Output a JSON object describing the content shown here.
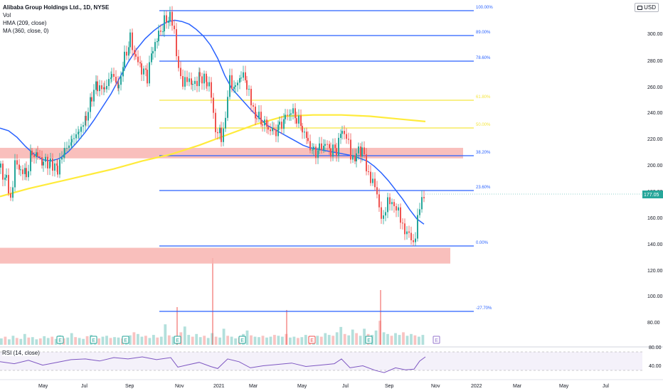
{
  "legend": {
    "title": "Alibaba Group Holdings Ltd., 1D, NYSE",
    "vol": "Vol",
    "hma": "HMA (209, close)",
    "ma": "MA (360, close, 0)"
  },
  "currency": "USD",
  "rsi_label": "RSI (14, close)",
  "colors": {
    "up": "#26a69a",
    "down": "#ef5350",
    "hma": "#2962ff",
    "ma": "#ffeb3b",
    "fib_blue": "#2962ff",
    "fib_yellow": "#f5e642",
    "zone": "#f8b4b0",
    "rsi": "#7e57c2",
    "earnings_green": "#26a69a",
    "earnings_red": "#ef5350",
    "earnings_purple": "#9575cd"
  },
  "chart_data": {
    "type": "candlestick",
    "title": "Alibaba Group Holdings Ltd., 1D, NYSE",
    "x_axis_labels": [
      "May",
      "Jul",
      "Sep",
      "Nov",
      "2021",
      "Mar",
      "May",
      "Jul",
      "Sep",
      "Nov",
      "2022",
      "Mar",
      "May",
      "Jul"
    ],
    "y_axis_ticks": [
      300,
      280,
      260,
      240,
      220,
      200,
      180,
      160,
      140,
      120,
      100,
      80
    ],
    "y_range": [
      70,
      322
    ],
    "last_price": "177.05",
    "fib_levels": [
      {
        "label": "100.00%",
        "price": 318,
        "color": "blue"
      },
      {
        "label": "89.00%",
        "price": 298,
        "color": "blue"
      },
      {
        "label": "78.60%",
        "price": 279,
        "color": "blue"
      },
      {
        "label": "61.80%",
        "price": 249,
        "color": "yellow"
      },
      {
        "label": "50.00%",
        "price": 228,
        "color": "yellow"
      },
      {
        "label": "38.20%",
        "price": 207,
        "color": "blue"
      },
      {
        "label": "23.60%",
        "price": 180,
        "color": "blue"
      },
      {
        "label": "0.00%",
        "price": 138,
        "color": "blue"
      },
      {
        "label": "-27.70%",
        "price": 88,
        "color": "blue"
      }
    ],
    "zones": [
      {
        "from": 205,
        "to": 213,
        "start": "Apr 2020",
        "end": "Nov 2021"
      },
      {
        "from": 125,
        "to": 137,
        "start": "Apr 2020",
        "end": "Nov 2021"
      }
    ],
    "rsi_ticks": [
      80,
      40
    ],
    "earnings_markers": [
      {
        "label": "E",
        "color": "green"
      },
      {
        "label": "E",
        "color": "green"
      },
      {
        "label": "E",
        "color": "green"
      },
      {
        "label": "E",
        "color": "green"
      },
      {
        "label": "E",
        "color": "green"
      },
      {
        "label": "E",
        "color": "red"
      },
      {
        "label": "E",
        "color": "green"
      },
      {
        "label": "E",
        "color": "purple"
      }
    ],
    "price_path": [
      [
        0,
        198
      ],
      [
        8,
        188
      ],
      [
        14,
        175
      ],
      [
        20,
        200
      ],
      [
        28,
        195
      ],
      [
        36,
        192
      ],
      [
        44,
        210
      ],
      [
        52,
        208
      ],
      [
        60,
        202
      ],
      [
        70,
        203
      ],
      [
        80,
        198
      ],
      [
        90,
        208
      ],
      [
        100,
        220
      ],
      [
        110,
        228
      ],
      [
        120,
        232
      ],
      [
        128,
        252
      ],
      [
        136,
        262
      ],
      [
        146,
        255
      ],
      [
        156,
        268
      ],
      [
        166,
        262
      ],
      [
        174,
        282
      ],
      [
        182,
        295
      ],
      [
        190,
        280
      ],
      [
        198,
        272
      ],
      [
        206,
        268
      ],
      [
        214,
        290
      ],
      [
        222,
        300
      ],
      [
        230,
        308
      ],
      [
        238,
        312
      ],
      [
        244,
        300
      ],
      [
        250,
        275
      ],
      [
        256,
        258
      ],
      [
        262,
        268
      ],
      [
        270,
        262
      ],
      [
        280,
        268
      ],
      [
        290,
        262
      ],
      [
        296,
        252
      ],
      [
        302,
        228
      ],
      [
        310,
        222
      ],
      [
        316,
        236
      ],
      [
        322,
        264
      ],
      [
        330,
        258
      ],
      [
        338,
        268
      ],
      [
        346,
        262
      ],
      [
        352,
        245
      ],
      [
        360,
        236
      ],
      [
        368,
        232
      ],
      [
        376,
        228
      ],
      [
        384,
        226
      ],
      [
        392,
        230
      ],
      [
        400,
        236
      ],
      [
        408,
        240
      ],
      [
        416,
        235
      ],
      [
        424,
        228
      ],
      [
        432,
        218
      ],
      [
        440,
        210
      ],
      [
        448,
        212
      ],
      [
        456,
        215
      ],
      [
        464,
        210
      ],
      [
        472,
        212
      ],
      [
        480,
        228
      ],
      [
        486,
        222
      ],
      [
        492,
        205
      ],
      [
        500,
        208
      ],
      [
        508,
        212
      ],
      [
        514,
        196
      ],
      [
        520,
        192
      ],
      [
        526,
        182
      ],
      [
        532,
        168
      ],
      [
        538,
        160
      ],
      [
        544,
        170
      ],
      [
        550,
        174
      ],
      [
        556,
        166
      ],
      [
        562,
        158
      ],
      [
        568,
        152
      ],
      [
        574,
        145
      ],
      [
        580,
        140
      ],
      [
        586,
        160
      ],
      [
        592,
        172
      ],
      [
        598,
        177
      ]
    ],
    "hma_path": [
      [
        0,
        228
      ],
      [
        12,
        226
      ],
      [
        24,
        221
      ],
      [
        36,
        214
      ],
      [
        48,
        208
      ],
      [
        60,
        204
      ],
      [
        72,
        203
      ],
      [
        84,
        205
      ],
      [
        96,
        210
      ],
      [
        108,
        217
      ],
      [
        120,
        225
      ],
      [
        132,
        234
      ],
      [
        144,
        244
      ],
      [
        156,
        254
      ],
      [
        168,
        266
      ],
      [
        180,
        278
      ],
      [
        192,
        288
      ],
      [
        204,
        296
      ],
      [
        216,
        302
      ],
      [
        226,
        306
      ],
      [
        236,
        309
      ],
      [
        246,
        310
      ],
      [
        256,
        309
      ],
      [
        266,
        307
      ],
      [
        276,
        303
      ],
      [
        286,
        298
      ],
      [
        296,
        291
      ],
      [
        306,
        281
      ],
      [
        316,
        268
      ],
      [
        326,
        258
      ],
      [
        336,
        252
      ],
      [
        346,
        246
      ],
      [
        356,
        240
      ],
      [
        366,
        235
      ],
      [
        376,
        230
      ],
      [
        386,
        227
      ],
      [
        396,
        224
      ],
      [
        406,
        221
      ],
      [
        416,
        218
      ],
      [
        426,
        215
      ],
      [
        436,
        213
      ],
      [
        446,
        212
      ],
      [
        456,
        211
      ],
      [
        466,
        210
      ],
      [
        476,
        209
      ],
      [
        486,
        208
      ],
      [
        496,
        207
      ],
      [
        506,
        205
      ],
      [
        516,
        203
      ],
      [
        526,
        199
      ],
      [
        536,
        194
      ],
      [
        546,
        188
      ],
      [
        556,
        181
      ],
      [
        566,
        174
      ],
      [
        576,
        166
      ],
      [
        586,
        159
      ],
      [
        596,
        155
      ]
    ],
    "ma_path": [
      [
        0,
        176
      ],
      [
        40,
        182
      ],
      [
        80,
        187
      ],
      [
        120,
        192
      ],
      [
        160,
        197
      ],
      [
        200,
        203
      ],
      [
        240,
        208
      ],
      [
        280,
        215
      ],
      [
        320,
        223
      ],
      [
        360,
        231
      ],
      [
        400,
        237
      ],
      [
        440,
        238
      ],
      [
        480,
        238
      ],
      [
        520,
        237
      ],
      [
        560,
        235
      ],
      [
        598,
        233
      ]
    ],
    "volume_heights": [
      8,
      12,
      6,
      14,
      9,
      7,
      18,
      10,
      11,
      6,
      8,
      13,
      9,
      12,
      7,
      15,
      8,
      10,
      20,
      11,
      9,
      7,
      13,
      16,
      10,
      8,
      12,
      14,
      9,
      11,
      10,
      8,
      12,
      15,
      22,
      18,
      12,
      14,
      9,
      16,
      10,
      12,
      40,
      15,
      12,
      10,
      22,
      35,
      16,
      12,
      18,
      11,
      14,
      9,
      20,
      12,
      10,
      30,
      14,
      12,
      8,
      10,
      18,
      26,
      15,
      12,
      11,
      14,
      10,
      12,
      16,
      14,
      12,
      18,
      10,
      12,
      9,
      11,
      16,
      12,
      10,
      14,
      12,
      20,
      16,
      14,
      22,
      34,
      18,
      15,
      28,
      20,
      14,
      30,
      18,
      16,
      26,
      48,
      22,
      18,
      14,
      20,
      16,
      22,
      14,
      18,
      15,
      12,
      16
    ],
    "rsi_path": [
      [
        0,
        58
      ],
      [
        20,
        52
      ],
      [
        40,
        62
      ],
      [
        60,
        48
      ],
      [
        80,
        56
      ],
      [
        100,
        64
      ],
      [
        120,
        66
      ],
      [
        140,
        60
      ],
      [
        160,
        70
      ],
      [
        180,
        66
      ],
      [
        200,
        72
      ],
      [
        220,
        64
      ],
      [
        240,
        70
      ],
      [
        250,
        42
      ],
      [
        262,
        48
      ],
      [
        280,
        56
      ],
      [
        296,
        44
      ],
      [
        306,
        38
      ],
      [
        320,
        66
      ],
      [
        336,
        58
      ],
      [
        352,
        40
      ],
      [
        370,
        46
      ],
      [
        390,
        50
      ],
      [
        410,
        54
      ],
      [
        430,
        44
      ],
      [
        450,
        48
      ],
      [
        470,
        52
      ],
      [
        480,
        66
      ],
      [
        492,
        40
      ],
      [
        510,
        46
      ],
      [
        528,
        32
      ],
      [
        540,
        26
      ],
      [
        556,
        40
      ],
      [
        570,
        34
      ],
      [
        582,
        36
      ],
      [
        590,
        60
      ],
      [
        598,
        72
      ]
    ]
  }
}
